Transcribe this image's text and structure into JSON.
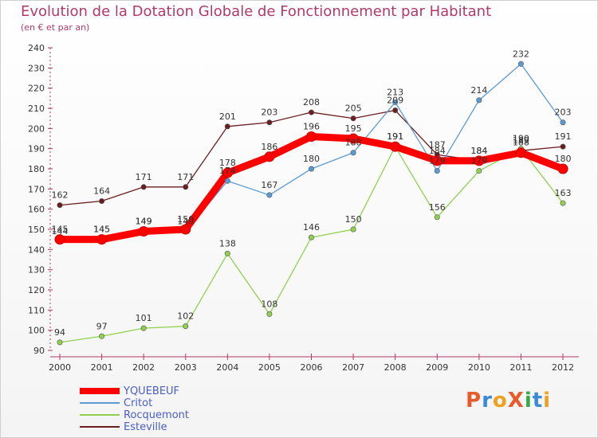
{
  "header": {
    "title": "Evolution de la Dotation Globale de Fonctionnement par Habitant",
    "subtitle": "(en € et par an)"
  },
  "logo": {
    "text": "ProXiti",
    "letters": [
      "P",
      "r",
      "o",
      "X",
      "i",
      "t",
      "i"
    ],
    "colors": [
      "#e85a2a",
      "#3a8ad8",
      "#f0a020",
      "#e85a2a",
      "#3aa84a",
      "#3a8ad8",
      "#f0a020"
    ]
  },
  "chart_data": {
    "type": "line",
    "title": "Evolution de la Dotation Globale de Fonctionnement par Habitant",
    "subtitle": "(en € et par an)",
    "xlabel": "",
    "ylabel": "",
    "x": [
      "2000",
      "2001",
      "2002",
      "2003",
      "2004",
      "2005",
      "2006",
      "2007",
      "2008",
      "2009",
      "2010",
      "2011",
      "2012"
    ],
    "ylim": [
      90,
      240
    ],
    "yticks": [
      90,
      100,
      110,
      120,
      130,
      140,
      150,
      160,
      170,
      180,
      190,
      200,
      210,
      220,
      230,
      240
    ],
    "grid": false,
    "legend_position": "bottom-left",
    "series": [
      {
        "name": "YQUEBEUF",
        "color": "#ff0000",
        "values": [
          145,
          145,
          149,
          150,
          178,
          186,
          196,
          195,
          191,
          184,
          184,
          188,
          180
        ]
      },
      {
        "name": "Critot",
        "color": "#5b9bd5",
        "values": [
          144,
          145,
          149,
          149,
          174,
          167,
          180,
          188,
          213,
          179,
          214,
          232,
          203
        ]
      },
      {
        "name": "Rocquemont",
        "color": "#8fd14f",
        "values": [
          94,
          97,
          101,
          102,
          138,
          108,
          146,
          150,
          191,
          156,
          179,
          190,
          163
        ]
      },
      {
        "name": "Esteville",
        "color": "#6b1e1e",
        "values": [
          162,
          164,
          171,
          171,
          201,
          203,
          208,
          205,
          209,
          187,
          184,
          189,
          191
        ]
      }
    ]
  }
}
